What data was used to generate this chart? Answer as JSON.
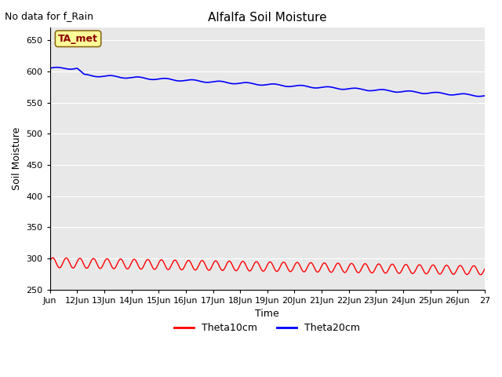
{
  "title": "Alfalfa Soil Moisture",
  "top_left_text": "No data for f_Rain",
  "xlabel": "Time",
  "ylabel": "Soil Moisture",
  "ylim": [
    250,
    670
  ],
  "yticks": [
    250,
    300,
    350,
    400,
    450,
    500,
    550,
    600,
    650
  ],
  "x_tick_labels": [
    "Jun",
    "12Jun",
    "13Jun",
    "14Jun",
    "15Jun",
    "16Jun",
    "17Jun",
    "18Jun",
    "19Jun",
    "20Jun",
    "21Jun",
    "22Jun",
    "23Jun",
    "24Jun",
    "25Jun",
    "26Jun",
    "27"
  ],
  "background_color": "#e8e8e8",
  "legend_label1": "Theta10cm",
  "legend_label2": "Theta20cm",
  "line1_color": "#ff0000",
  "line2_color": "#0000ff",
  "annotation_text": "TA_met",
  "annotation_color": "#8b0000",
  "annotation_bg": "#ffff99",
  "figsize": [
    6.4,
    4.8
  ],
  "dpi": 100
}
